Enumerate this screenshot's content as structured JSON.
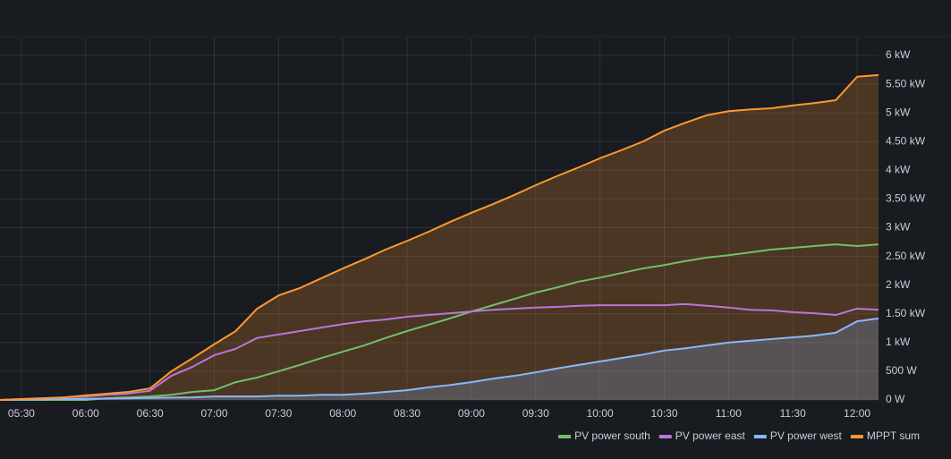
{
  "chart_data": {
    "type": "line",
    "x": [
      "05:20",
      "05:30",
      "05:40",
      "05:50",
      "06:00",
      "06:10",
      "06:20",
      "06:30",
      "06:40",
      "06:50",
      "07:00",
      "07:10",
      "07:20",
      "07:30",
      "07:40",
      "07:50",
      "08:00",
      "08:10",
      "08:20",
      "08:30",
      "08:40",
      "08:50",
      "09:00",
      "09:10",
      "09:20",
      "09:30",
      "09:40",
      "09:50",
      "10:00",
      "10:10",
      "10:20",
      "10:30",
      "10:40",
      "10:50",
      "11:00",
      "11:10",
      "11:20",
      "11:30",
      "11:40",
      "11:50",
      "12:00",
      "12:10"
    ],
    "series": [
      {
        "name": "PV power south",
        "color": "#73bf69",
        "fill": false,
        "values": [
          0,
          0,
          0,
          0,
          0,
          30,
          45,
          60,
          90,
          140,
          170,
          310,
          390,
          500,
          610,
          730,
          840,
          950,
          1080,
          1200,
          1310,
          1420,
          1540,
          1650,
          1760,
          1870,
          1960,
          2060,
          2130,
          2210,
          2290,
          2350,
          2420,
          2480,
          2520,
          2570,
          2620,
          2650,
          2680,
          2710,
          2680,
          2710
        ]
      },
      {
        "name": "PV power east",
        "color": "#b877d9",
        "fill": false,
        "values": [
          0,
          15,
          30,
          45,
          60,
          90,
          110,
          160,
          420,
          580,
          780,
          890,
          1080,
          1140,
          1200,
          1260,
          1320,
          1370,
          1400,
          1450,
          1480,
          1510,
          1540,
          1570,
          1590,
          1610,
          1620,
          1640,
          1650,
          1650,
          1650,
          1650,
          1670,
          1640,
          1610,
          1570,
          1560,
          1530,
          1510,
          1480,
          1590,
          1570
        ]
      },
      {
        "name": "PV power west",
        "color": "#8ab8ff",
        "fill": true,
        "values": [
          0,
          5,
          10,
          15,
          20,
          25,
          30,
          35,
          40,
          45,
          60,
          60,
          60,
          75,
          75,
          90,
          90,
          110,
          140,
          170,
          220,
          260,
          310,
          370,
          420,
          480,
          550,
          610,
          670,
          730,
          790,
          860,
          900,
          950,
          1000,
          1030,
          1060,
          1090,
          1120,
          1170,
          1370,
          1420
        ]
      },
      {
        "name": "MPPT sum",
        "color": "#ff9830",
        "fill": true,
        "values": [
          0,
          15,
          30,
          45,
          80,
          110,
          140,
          200,
          500,
          730,
          970,
          1200,
          1590,
          1820,
          1950,
          2120,
          2290,
          2450,
          2620,
          2770,
          2930,
          3100,
          3260,
          3410,
          3570,
          3740,
          3900,
          4050,
          4210,
          4350,
          4500,
          4690,
          4830,
          4960,
          5030,
          5060,
          5080,
          5130,
          5170,
          5220,
          5630,
          5660
        ]
      }
    ],
    "xlim": [
      "05:20",
      "12:10"
    ],
    "xticks": [
      "05:30",
      "06:00",
      "06:30",
      "07:00",
      "07:30",
      "08:00",
      "08:30",
      "09:00",
      "09:30",
      "10:00",
      "10:30",
      "11:00",
      "11:30",
      "12:00"
    ],
    "ylim": [
      0,
      6000
    ],
    "yticks": [
      {
        "value": 0,
        "label": "0 W"
      },
      {
        "value": 500,
        "label": "500 W"
      },
      {
        "value": 1000,
        "label": "1 kW"
      },
      {
        "value": 1500,
        "label": "1.50 kW"
      },
      {
        "value": 2000,
        "label": "2 kW"
      },
      {
        "value": 2500,
        "label": "2.50 kW"
      },
      {
        "value": 3000,
        "label": "3 kW"
      },
      {
        "value": 3500,
        "label": "3.50 kW"
      },
      {
        "value": 4000,
        "label": "4 kW"
      },
      {
        "value": 4500,
        "label": "4.50 kW"
      },
      {
        "value": 5000,
        "label": "5 kW"
      },
      {
        "value": 5500,
        "label": "5.50 kW"
      },
      {
        "value": 6000,
        "label": "6 kW"
      }
    ],
    "grid": true,
    "legend": "bottom-right"
  }
}
